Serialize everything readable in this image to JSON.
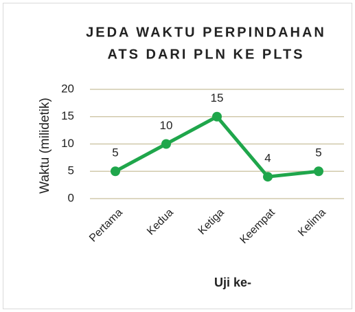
{
  "chart_data": {
    "type": "line",
    "title": [
      "JEDA WAKTU PERPINDAHAN",
      "ATS DARI PLN KE PLTS"
    ],
    "x_label": "Uji ke-",
    "y_label": "Waktu (milidetik)",
    "categories": [
      "Pertama",
      "Kedua",
      "Ketiga",
      "Keempat",
      "Kelima"
    ],
    "values": [
      5,
      10,
      15,
      4,
      5
    ],
    "color": "#1fa64b",
    "ylim": [
      0,
      20
    ],
    "yticks": [
      0,
      5,
      10,
      15,
      20
    ],
    "grid": true,
    "grid_color": "#c8bf9c",
    "data_labels": true
  }
}
